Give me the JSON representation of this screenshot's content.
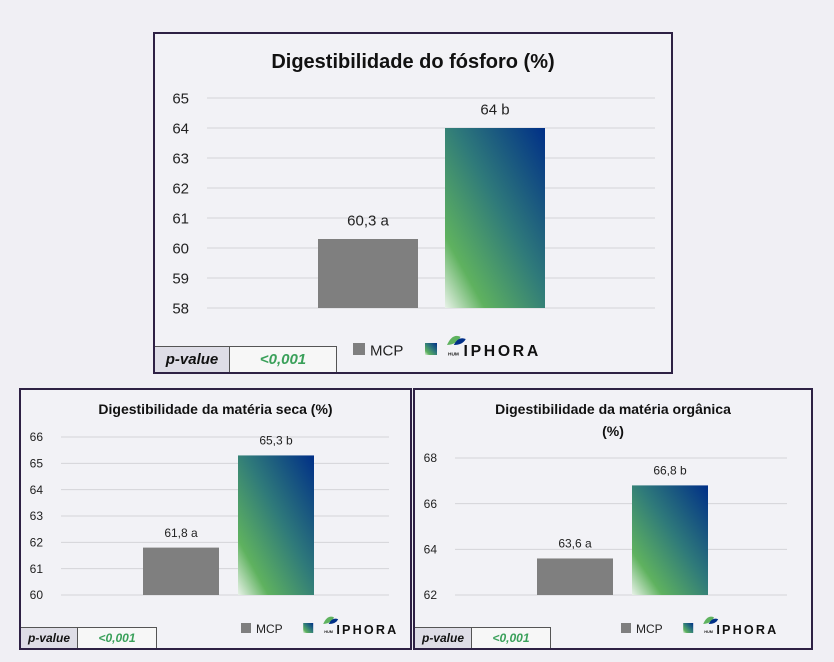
{
  "colors": {
    "mcp": "#7f7f7f",
    "grad_top": "#002f87",
    "grad_mid": "#2f7a7a",
    "grad_low": "#5fb25f",
    "grad_bottom": "#e8f2e8",
    "pvalue": "#3aa05a"
  },
  "legend": {
    "mcp_label": "MCP",
    "brand_small": "HUM",
    "brand_text": "IPHORA"
  },
  "charts": [
    {
      "title_lines": [
        "Digestibilidade do fósforo (%)"
      ],
      "pvalue_label": "p-value",
      "pvalue_value": "<0,001"
    },
    {
      "title_lines": [
        "Digestibilidade da matéria seca (%)"
      ],
      "pvalue_label": "p-value",
      "pvalue_value": "<0,001"
    },
    {
      "title_lines": [
        "Digestibilidade da matéria orgânica",
        "(%)"
      ],
      "pvalue_label": "p-value",
      "pvalue_value": "<0,001"
    }
  ],
  "chart_data": [
    {
      "type": "bar",
      "title": "Digestibilidade do fósforo (%)",
      "categories": [
        "MCP",
        "IPHORA"
      ],
      "values": [
        60.3,
        64
      ],
      "data_labels": [
        "60,3 a",
        "64 b"
      ],
      "yticks": [
        "58",
        "59",
        "60",
        "61",
        "62",
        "63",
        "64",
        "65"
      ],
      "ylim": [
        58,
        65
      ],
      "grid": true,
      "legend": "bottom"
    },
    {
      "type": "bar",
      "title": "Digestibilidade da matéria seca (%)",
      "categories": [
        "MCP",
        "IPHORA"
      ],
      "values": [
        61.8,
        65.3
      ],
      "data_labels": [
        "61,8 a",
        "65,3 b"
      ],
      "yticks": [
        "60",
        "61",
        "62",
        "63",
        "64",
        "65",
        "66"
      ],
      "ylim": [
        60,
        66
      ],
      "grid": true,
      "legend": "bottom"
    },
    {
      "type": "bar",
      "title": "Digestibilidade da matéria orgânica (%)",
      "categories": [
        "MCP",
        "IPHORA"
      ],
      "values": [
        63.6,
        66.8
      ],
      "data_labels": [
        "63,6 a",
        "66,8 b"
      ],
      "yticks": [
        "62",
        "64",
        "66",
        "68"
      ],
      "ylim": [
        62,
        68
      ],
      "grid": true,
      "legend": "bottom"
    }
  ]
}
